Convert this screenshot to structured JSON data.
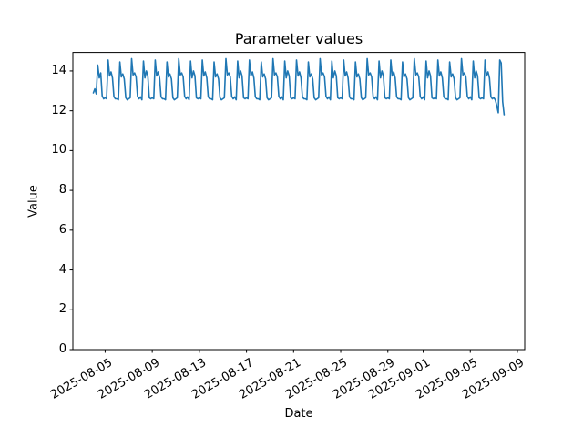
{
  "chart_data": {
    "type": "line",
    "title": "Parameter values",
    "xlabel": "Date",
    "ylabel": "Value",
    "line_color": "#1f77b4",
    "grid": false,
    "legend": null,
    "x_start_date": "2025-08-04",
    "samples_per_day": 8,
    "xlim_days": [
      -1.74,
      36.62
    ],
    "ylim": [
      0,
      14.93
    ],
    "y_ticks": [
      0,
      2,
      4,
      6,
      8,
      10,
      12,
      14
    ],
    "x_ticks": [
      {
        "day": 1,
        "label": "2025-08-05"
      },
      {
        "day": 5,
        "label": "2025-08-09"
      },
      {
        "day": 9,
        "label": "2025-08-13"
      },
      {
        "day": 13,
        "label": "2025-08-17"
      },
      {
        "day": 17,
        "label": "2025-08-21"
      },
      {
        "day": 21,
        "label": "2025-08-25"
      },
      {
        "day": 25,
        "label": "2025-08-29"
      },
      {
        "day": 28,
        "label": "2025-09-01"
      },
      {
        "day": 32,
        "label": "2025-09-05"
      },
      {
        "day": 36,
        "label": "2025-09-09"
      }
    ],
    "values": [
      12.9,
      13.1,
      12.85,
      14.3,
      13.65,
      13.9,
      12.75,
      12.6,
      12.65,
      12.6,
      14.55,
      13.75,
      13.95,
      13.65,
      12.7,
      12.6,
      12.6,
      12.55,
      14.45,
      13.7,
      13.85,
      13.6,
      12.65,
      12.55,
      12.6,
      12.65,
      14.62,
      13.8,
      13.9,
      13.7,
      12.72,
      12.6,
      12.7,
      12.55,
      14.5,
      13.65,
      14.0,
      13.75,
      12.65,
      12.6,
      12.65,
      12.6,
      14.55,
      13.75,
      13.95,
      13.65,
      12.7,
      12.6,
      12.6,
      12.55,
      14.45,
      13.7,
      13.85,
      13.6,
      12.65,
      12.55,
      12.6,
      12.65,
      14.62,
      13.8,
      13.9,
      13.7,
      12.72,
      12.6,
      12.7,
      12.55,
      14.5,
      13.65,
      14.0,
      13.75,
      12.65,
      12.6,
      12.65,
      12.6,
      14.55,
      13.75,
      13.95,
      13.65,
      12.7,
      12.6,
      12.6,
      12.55,
      14.45,
      13.7,
      13.85,
      13.6,
      12.65,
      12.55,
      12.6,
      12.65,
      14.62,
      13.8,
      13.9,
      13.7,
      12.72,
      12.6,
      12.7,
      12.55,
      14.5,
      13.65,
      14.0,
      13.75,
      12.65,
      12.6,
      12.65,
      12.6,
      14.55,
      13.75,
      13.95,
      13.65,
      12.7,
      12.6,
      12.6,
      12.55,
      14.45,
      13.7,
      13.85,
      13.6,
      12.65,
      12.55,
      12.6,
      12.65,
      14.62,
      13.8,
      13.9,
      13.7,
      12.72,
      12.6,
      12.7,
      12.55,
      14.5,
      13.65,
      14.0,
      13.75,
      12.65,
      12.6,
      12.65,
      12.6,
      14.55,
      13.75,
      13.95,
      13.65,
      12.7,
      12.6,
      12.6,
      12.55,
      14.45,
      13.7,
      13.85,
      13.6,
      12.65,
      12.55,
      12.6,
      12.65,
      14.62,
      13.8,
      13.9,
      13.7,
      12.72,
      12.6,
      12.7,
      12.55,
      14.5,
      13.65,
      14.0,
      13.75,
      12.65,
      12.6,
      12.65,
      12.6,
      14.55,
      13.75,
      13.95,
      13.65,
      12.7,
      12.6,
      12.6,
      12.55,
      14.45,
      13.7,
      13.85,
      13.6,
      12.65,
      12.55,
      12.6,
      12.65,
      14.62,
      13.8,
      13.9,
      13.7,
      12.72,
      12.6,
      12.7,
      12.55,
      14.5,
      13.65,
      14.0,
      13.75,
      12.65,
      12.6,
      12.65,
      12.6,
      14.55,
      13.75,
      13.95,
      13.65,
      12.7,
      12.6,
      12.6,
      12.55,
      14.45,
      13.7,
      13.85,
      13.6,
      12.65,
      12.55,
      12.6,
      12.65,
      14.62,
      13.8,
      13.9,
      13.7,
      12.72,
      12.6,
      12.7,
      12.55,
      14.5,
      13.65,
      14.0,
      13.75,
      12.65,
      12.6,
      12.65,
      12.6,
      14.55,
      13.75,
      13.95,
      13.65,
      12.7,
      12.6,
      12.6,
      12.55,
      14.45,
      13.7,
      13.85,
      13.6,
      12.65,
      12.55,
      12.6,
      12.65,
      14.62,
      13.8,
      13.9,
      13.7,
      12.72,
      12.6,
      12.7,
      12.55,
      14.5,
      13.65,
      14.0,
      13.75,
      12.65,
      12.6,
      12.65,
      12.6,
      14.55,
      13.75,
      13.95,
      13.65,
      12.7,
      12.6,
      12.65,
      12.55,
      12.25,
      11.9,
      14.55,
      14.4,
      12.45,
      11.8
    ]
  }
}
